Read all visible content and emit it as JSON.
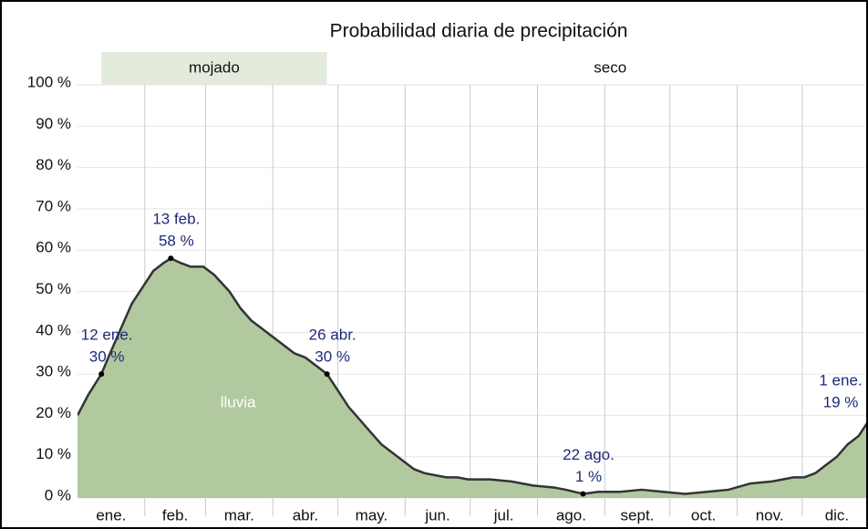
{
  "chart_data": {
    "type": "area",
    "title": "Probabilidad diaria de precipitación",
    "seasons": [
      {
        "name": "mojado",
        "start": 11,
        "end": 115,
        "color": "#e3ebdc"
      },
      {
        "name": "seco",
        "start": 115,
        "end": 376,
        "color": "#ffffff"
      }
    ],
    "x": [
      0,
      5,
      11,
      15,
      20,
      25,
      30,
      35,
      40,
      43,
      47,
      52,
      58,
      63,
      70,
      75,
      80,
      85,
      90,
      95,
      100,
      105,
      110,
      115,
      120,
      125,
      130,
      135,
      140,
      145,
      150,
      155,
      160,
      165,
      170,
      175,
      180,
      190,
      200,
      210,
      220,
      225,
      233,
      240,
      250,
      260,
      270,
      280,
      290,
      300,
      310,
      320,
      330,
      335,
      340,
      345,
      350,
      355,
      360,
      365
    ],
    "series": [
      {
        "name": "lluvia",
        "color": "#b2c9a0",
        "line_color": "#333333",
        "values": [
          20,
          25,
          30,
          35,
          41,
          47,
          51,
          55,
          57,
          58,
          57,
          56,
          56,
          54,
          50,
          46,
          43,
          41,
          39,
          37,
          35,
          34,
          32,
          30,
          26,
          22,
          19,
          16,
          13,
          11,
          9,
          7,
          6,
          5.5,
          5,
          5,
          4.5,
          4.5,
          4,
          3,
          2.5,
          2,
          1,
          1.5,
          1.5,
          2,
          1.5,
          1,
          1.5,
          2,
          3.5,
          4,
          5,
          5,
          6,
          8,
          10,
          13,
          15,
          19
        ]
      }
    ],
    "xlim": [
      0,
      366
    ],
    "xticks": [
      {
        "value": 0,
        "label": "ene."
      },
      {
        "value": 31,
        "label": "feb."
      },
      {
        "value": 59,
        "label": "mar."
      },
      {
        "value": 90,
        "label": "abr."
      },
      {
        "value": 120,
        "label": "may."
      },
      {
        "value": 151,
        "label": "jun."
      },
      {
        "value": 181,
        "label": "jul."
      },
      {
        "value": 212,
        "label": "ago."
      },
      {
        "value": 243,
        "label": "sept."
      },
      {
        "value": 273,
        "label": "oct."
      },
      {
        "value": 304,
        "label": "nov."
      },
      {
        "value": 334,
        "label": "dic."
      }
    ],
    "ylim": [
      0,
      100
    ],
    "yticks": [
      {
        "value": 0,
        "label": "0 %"
      },
      {
        "value": 10,
        "label": "10 %"
      },
      {
        "value": 20,
        "label": "20 %"
      },
      {
        "value": 30,
        "label": "30 %"
      },
      {
        "value": 40,
        "label": "40 %"
      },
      {
        "value": 50,
        "label": "50 %"
      },
      {
        "value": 60,
        "label": "60 %"
      },
      {
        "value": 70,
        "label": "70 %"
      },
      {
        "value": 80,
        "label": "80 %"
      },
      {
        "value": 90,
        "label": "90 %"
      },
      {
        "value": 100,
        "label": "100 %"
      }
    ],
    "grid": true,
    "annotations": [
      {
        "date": "12 ene.",
        "x": 11,
        "value": 30,
        "value_label": "30 %"
      },
      {
        "date": "13 feb.",
        "x": 43,
        "value": 58,
        "value_label": "58 %"
      },
      {
        "date": "26 abr.",
        "x": 115,
        "value": 30,
        "value_label": "30 %"
      },
      {
        "date": "22 ago.",
        "x": 233,
        "value": 1,
        "value_label": "1 %"
      },
      {
        "date": "1 ene.",
        "x": 365,
        "value": 19,
        "value_label": "19 %"
      }
    ]
  }
}
